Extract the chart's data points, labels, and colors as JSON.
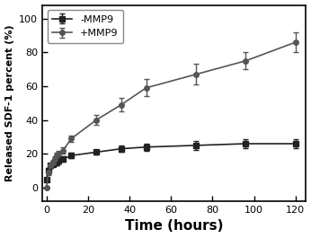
{
  "title": "",
  "xlabel": "Time (hours)",
  "ylabel": "Released SDF-1 percent (%)",
  "xlim": [
    -2,
    125
  ],
  "ylim": [
    -8,
    108
  ],
  "xticks": [
    0,
    20,
    40,
    60,
    80,
    100,
    120
  ],
  "yticks": [
    0,
    20,
    40,
    60,
    80,
    100
  ],
  "series": [
    {
      "label": "-MMP9",
      "marker": "s",
      "color": "#222222",
      "x": [
        0,
        1,
        2,
        3,
        4,
        5,
        6,
        8,
        12,
        24,
        36,
        48,
        72,
        96,
        120
      ],
      "y": [
        5,
        10,
        13,
        14,
        15,
        15,
        16,
        17,
        19,
        21,
        23,
        24,
        25,
        26,
        26
      ],
      "yerr": [
        1,
        1.5,
        1.5,
        1.5,
        1.5,
        1.5,
        1.5,
        1.5,
        1.5,
        1.5,
        2,
        2,
        2.5,
        2.5,
        2.5
      ]
    },
    {
      "label": "+MMP9",
      "marker": "o",
      "color": "#555555",
      "x": [
        0,
        1,
        2,
        3,
        4,
        5,
        6,
        8,
        12,
        24,
        36,
        48,
        72,
        96,
        120
      ],
      "y": [
        0,
        9,
        13,
        15,
        17,
        19,
        20,
        22,
        29,
        40,
        49,
        59,
        67,
        75,
        86
      ],
      "yerr": [
        0.5,
        1.5,
        1.5,
        1.5,
        1.5,
        1.5,
        2,
        2,
        2,
        3,
        4,
        5,
        6,
        5,
        6
      ]
    }
  ],
  "legend_loc": "upper left",
  "background_color": "#ffffff",
  "plot_area_color": "#ffffff",
  "xlabel_fontsize": 11,
  "ylabel_fontsize": 8,
  "tick_fontsize": 8,
  "legend_fontsize": 8,
  "linewidth": 1.2,
  "markersize": 4,
  "capsize": 2
}
